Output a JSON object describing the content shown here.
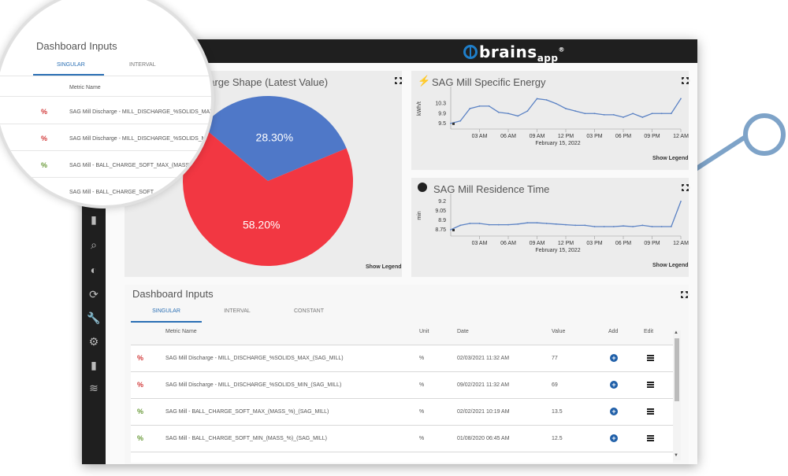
{
  "app": {
    "brand_main": "brains",
    "brand_sub": "app",
    "brand_mark": "®"
  },
  "pie_card": {
    "title_partial": "harge Shape (Latest Value)",
    "show_legend": "Show Legend",
    "colors": {
      "blue": "#4f78c8",
      "red": "#f23742"
    }
  },
  "energy_card": {
    "title": "SAG Mill Specific Energy",
    "icon": "bolt-icon",
    "ylabel": "kWh/t",
    "show_legend": "Show Legend",
    "date": "February 15, 2022"
  },
  "residence_card": {
    "title": "SAG Mill Residence Time",
    "icon": "clock-icon",
    "ylabel": "min",
    "show_legend": "Show Legend",
    "date": "February 15, 2022"
  },
  "chart_data": [
    {
      "type": "pie",
      "labels": [
        "",
        ""
      ],
      "values": [
        28.3,
        58.2
      ],
      "data_labels": [
        "28.30%",
        "58.20%"
      ],
      "colors": [
        "#4f78c8",
        "#f23742"
      ]
    },
    {
      "type": "line",
      "title": "SAG Mill Specific Energy",
      "ylabel": "kWh/t",
      "yticks": [
        "10.3",
        "9.9",
        "9.5"
      ],
      "ylim": [
        9.4,
        10.8
      ],
      "xticks": [
        "03 AM",
        "06 AM",
        "09 AM",
        "12 PM",
        "03 PM",
        "06 PM",
        "09 PM",
        "12 AM"
      ],
      "x_hours": [
        0,
        1,
        2,
        3,
        4,
        5,
        6,
        7,
        8,
        9,
        10,
        11,
        12,
        13,
        14,
        15,
        16,
        17,
        18,
        19,
        20,
        21,
        22,
        23,
        24
      ],
      "values": [
        9.5,
        9.6,
        10.1,
        10.2,
        10.2,
        9.95,
        9.9,
        9.8,
        10.0,
        10.5,
        10.45,
        10.3,
        10.1,
        10.0,
        9.9,
        9.9,
        9.85,
        9.85,
        9.75,
        9.9,
        9.75,
        9.9,
        9.9,
        9.9,
        10.5
      ],
      "date_label": "February 15, 2022"
    },
    {
      "type": "line",
      "title": "SAG Mill Residence Time",
      "ylabel": "min",
      "yticks": [
        "9.2",
        "9.05",
        "8.9",
        "8.75"
      ],
      "ylim": [
        8.7,
        9.25
      ],
      "xticks": [
        "03 AM",
        "06 AM",
        "09 AM",
        "12 PM",
        "03 PM",
        "06 PM",
        "09 PM",
        "12 AM"
      ],
      "x_hours": [
        0,
        1,
        2,
        3,
        4,
        5,
        6,
        7,
        8,
        9,
        10,
        11,
        12,
        13,
        14,
        15,
        16,
        17,
        18,
        19,
        20,
        21,
        22,
        23,
        24
      ],
      "values": [
        8.75,
        8.82,
        8.85,
        8.85,
        8.83,
        8.83,
        8.83,
        8.84,
        8.86,
        8.86,
        8.85,
        8.84,
        8.83,
        8.82,
        8.82,
        8.8,
        8.8,
        8.8,
        8.81,
        8.8,
        8.82,
        8.8,
        8.8,
        8.8,
        9.2
      ],
      "date_label": "February 15, 2022"
    }
  ],
  "inputs": {
    "title": "Dashboard Inputs",
    "tabs": [
      "SINGULAR",
      "INTERVAL",
      "CONSTANT"
    ],
    "headers": {
      "metric": "Metric Name",
      "unit": "Unit",
      "date": "Date",
      "value": "Value",
      "add": "Add",
      "edit": "Edit"
    },
    "rows": [
      {
        "icon": "%",
        "metric": "SAG Mill Discharge - MILL_DISCHARGE_%SOLIDS_MAX_(SAG_MILL)",
        "unit": "%",
        "date": "02/03/2021 11:32 AM",
        "value": "77",
        "color": "red"
      },
      {
        "icon": "%",
        "metric": "SAG Mill Discharge - MILL_DISCHARGE_%SOLIDS_MIN_(SAG_MILL)",
        "unit": "%",
        "date": "09/02/2021 11:32 AM",
        "value": "69",
        "color": "red"
      },
      {
        "icon": "%",
        "metric": "SAG Mill - BALL_CHARGE_SOFT_MAX_(MASS_%)_(SAG_MILL)",
        "unit": "%",
        "date": "02/02/2021 10:19 AM",
        "value": "13.5",
        "color": "green"
      },
      {
        "icon": "%",
        "metric": "SAG Mill - BALL_CHARGE_SOFT_MIN_(MASS_%)_(SAG_MILL)",
        "unit": "%",
        "date": "01/08/2020 06:45 AM",
        "value": "12.5",
        "color": "green"
      }
    ]
  },
  "zoom": {
    "title": "Dashboard Inputs",
    "tabs": [
      "SINGULAR",
      "INTERVAL"
    ],
    "header": "Metric Name",
    "rows": [
      {
        "icon": "%",
        "metric": "SAG Mill Discharge - MILL_DISCHARGE_%SOLIDS_MAX",
        "color": "red"
      },
      {
        "icon": "%",
        "metric": "SAG Mill Discharge - MILL_DISCHARGE_%SOLIDS_MI",
        "color": "red"
      },
      {
        "icon": "%",
        "metric": "SAG Mill - BALL_CHARGE_SOFT_MAX_(MASS",
        "color": "green"
      },
      {
        "icon": "%",
        "metric": "SAG Mill - BALL_CHARGE_SOFT_",
        "color": "green"
      }
    ]
  }
}
